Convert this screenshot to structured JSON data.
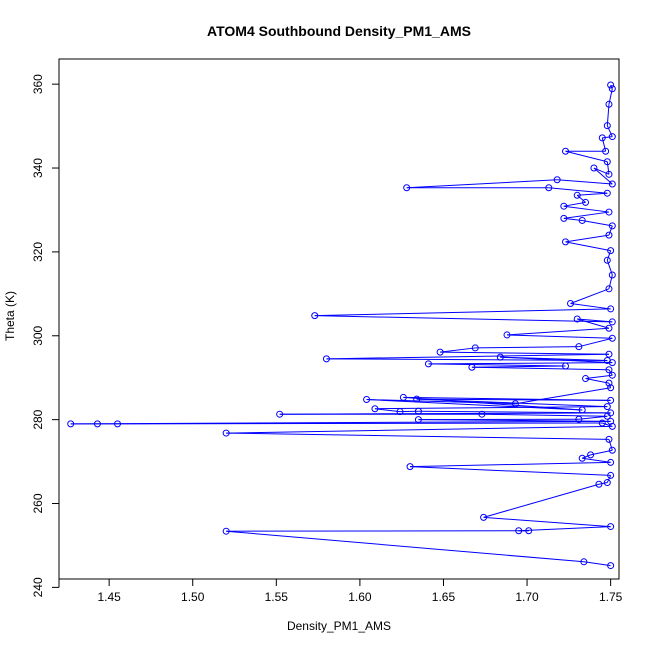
{
  "chart_data": {
    "type": "scatter",
    "title": "ATOM4 Southbound Density_PM1_AMS",
    "xlabel": "Density_PM1_AMS",
    "ylabel": "Theta (K)",
    "xlim": [
      1.42,
      1.755
    ],
    "ylim": [
      242,
      366
    ],
    "x_ticks": [
      "1.45",
      "1.50",
      "1.55",
      "1.60",
      "1.65",
      "1.70",
      "1.75"
    ],
    "y_ticks": [
      "240",
      "260",
      "280",
      "300",
      "320",
      "340",
      "360"
    ],
    "grid": false,
    "legend": "none",
    "color": "#0000ff",
    "style": "points-connected-by-lines",
    "series": [
      {
        "points": [
          [
            1.75,
            359.8
          ],
          [
            1.751,
            358.9
          ],
          [
            1.749,
            355.2
          ],
          [
            1.748,
            350.1
          ],
          [
            1.751,
            347.5
          ],
          [
            1.745,
            347.2
          ],
          [
            1.747,
            344.0
          ],
          [
            1.723,
            344.0
          ],
          [
            1.748,
            341.5
          ],
          [
            1.749,
            338.5
          ],
          [
            1.74,
            340.0
          ],
          [
            1.751,
            336.2
          ],
          [
            1.718,
            337.2
          ],
          [
            1.628,
            335.3
          ],
          [
            1.713,
            335.3
          ],
          [
            1.748,
            334.0
          ],
          [
            1.73,
            333.5
          ],
          [
            1.735,
            331.8
          ],
          [
            1.722,
            330.9
          ],
          [
            1.749,
            329.5
          ],
          [
            1.722,
            328.0
          ],
          [
            1.733,
            327.5
          ],
          [
            1.751,
            326.2
          ],
          [
            1.749,
            324.0
          ],
          [
            1.723,
            322.4
          ],
          [
            1.75,
            320.3
          ],
          [
            1.748,
            318.0
          ],
          [
            1.751,
            314.5
          ],
          [
            1.749,
            311.2
          ],
          [
            1.726,
            307.7
          ],
          [
            1.75,
            306.4
          ],
          [
            1.573,
            304.8
          ],
          [
            1.751,
            303.3
          ],
          [
            1.73,
            304.0
          ],
          [
            1.749,
            301.8
          ],
          [
            1.688,
            300.2
          ],
          [
            1.751,
            299.4
          ],
          [
            1.731,
            297.4
          ],
          [
            1.669,
            297.1
          ],
          [
            1.648,
            296.1
          ],
          [
            1.749,
            295.6
          ],
          [
            1.58,
            294.5
          ],
          [
            1.748,
            294.1
          ],
          [
            1.684,
            294.9
          ],
          [
            1.751,
            293.6
          ],
          [
            1.641,
            293.3
          ],
          [
            1.723,
            292.8
          ],
          [
            1.667,
            292.5
          ],
          [
            1.749,
            291.9
          ],
          [
            1.751,
            290.6
          ],
          [
            1.735,
            289.8
          ],
          [
            1.749,
            288.7
          ],
          [
            1.75,
            287.6
          ],
          [
            1.693,
            283.8
          ],
          [
            1.604,
            284.8
          ],
          [
            1.733,
            282.3
          ],
          [
            1.626,
            285.3
          ],
          [
            1.75,
            284.6
          ],
          [
            1.634,
            284.9
          ],
          [
            1.748,
            283.1
          ],
          [
            1.609,
            282.6
          ],
          [
            1.624,
            281.9
          ],
          [
            1.635,
            282.0
          ],
          [
            1.75,
            281.6
          ],
          [
            1.552,
            281.3
          ],
          [
            1.673,
            281.3
          ],
          [
            1.748,
            280.8
          ],
          [
            1.731,
            280.1
          ],
          [
            1.635,
            280.0
          ],
          [
            1.75,
            279.6
          ],
          [
            1.427,
            279.0
          ],
          [
            1.443,
            279.0
          ],
          [
            1.455,
            279.0
          ],
          [
            1.745,
            279.2
          ],
          [
            1.751,
            278.4
          ],
          [
            1.52,
            276.8
          ],
          [
            1.749,
            275.3
          ],
          [
            1.751,
            272.7
          ],
          [
            1.738,
            271.6
          ],
          [
            1.733,
            270.8
          ],
          [
            1.75,
            269.8
          ],
          [
            1.63,
            268.8
          ],
          [
            1.75,
            266.7
          ],
          [
            1.748,
            265.0
          ],
          [
            1.743,
            264.6
          ],
          [
            1.674,
            256.7
          ],
          [
            1.75,
            254.5
          ],
          [
            1.695,
            253.5
          ],
          [
            1.701,
            253.5
          ],
          [
            1.52,
            253.4
          ],
          [
            1.734,
            246.1
          ],
          [
            1.75,
            245.2
          ]
        ]
      }
    ]
  }
}
